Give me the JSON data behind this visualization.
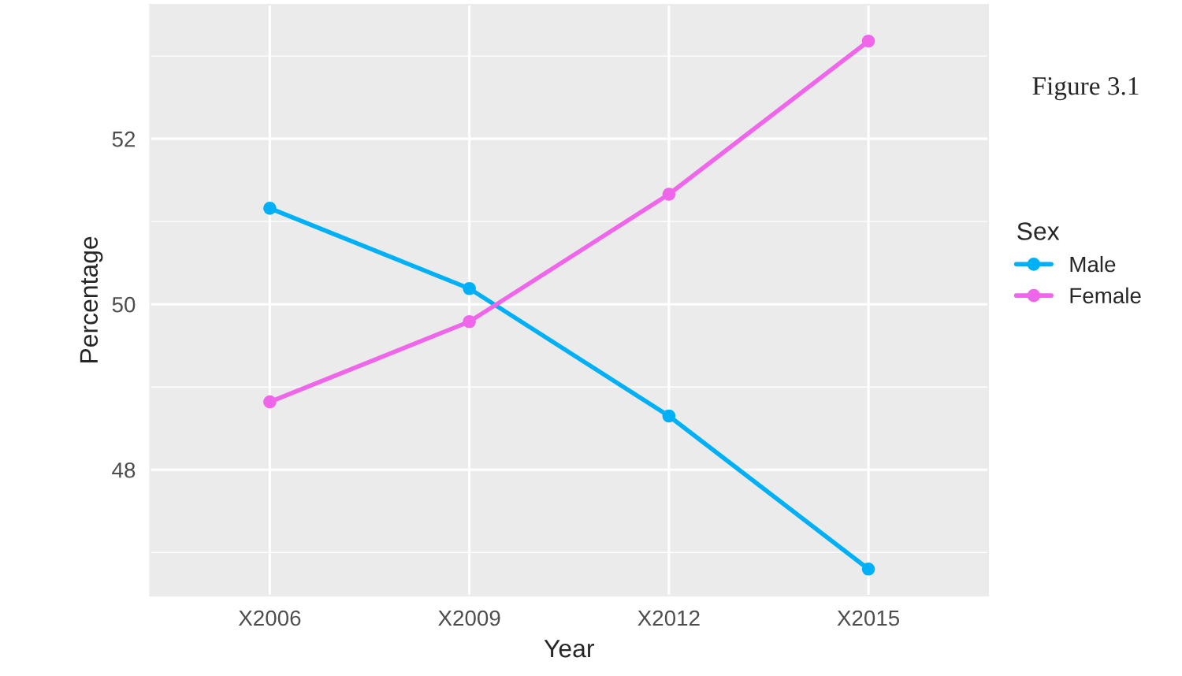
{
  "chart_data": {
    "type": "line",
    "xlabel": "Year",
    "ylabel": "Percentage",
    "legend_title": "Sex",
    "categories": [
      "X2006",
      "X2009",
      "X2012",
      "X2015"
    ],
    "series": [
      {
        "name": "Male",
        "color": "#00b0f6",
        "values": [
          51.16,
          50.19,
          48.65,
          46.8
        ]
      },
      {
        "name": "Female",
        "color": "#f066ea",
        "values": [
          48.82,
          49.79,
          51.33,
          53.18
        ]
      }
    ],
    "ylim": [
      46.48,
      53.62
    ],
    "yticks": [
      48,
      50,
      52
    ],
    "grid": true,
    "legend": "right",
    "marker": "circle",
    "line_style": "solid",
    "annotations": [
      "Figure 3.1"
    ]
  }
}
